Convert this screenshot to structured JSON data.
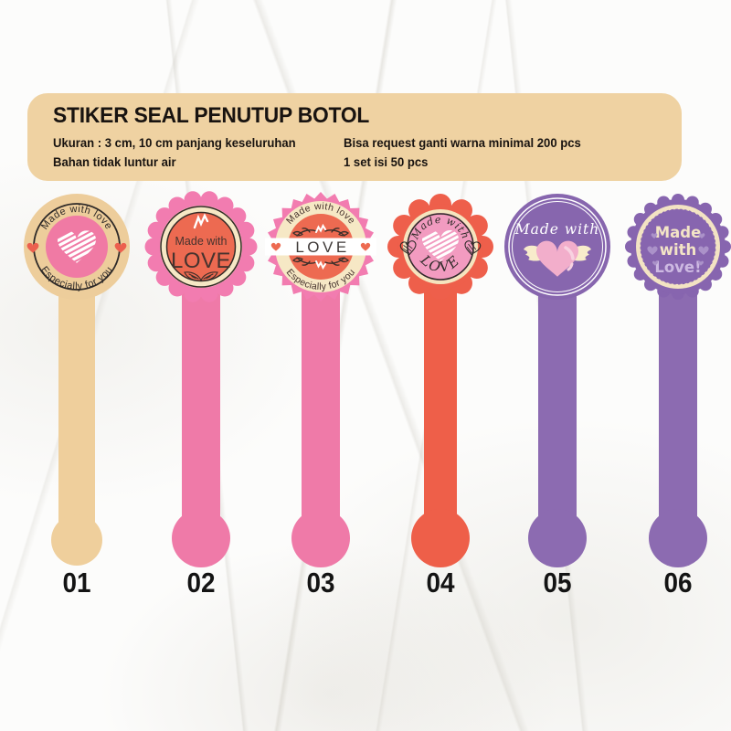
{
  "header": {
    "title": "STIKER SEAL PENUTUP BOTOL",
    "left_lines": [
      "Ukuran : 3 cm, 10 cm panjang keseluruhan",
      "Bahan tidak luntur air"
    ],
    "right_lines": [
      "Bisa request ganti warna minimal 200 pcs",
      "1 set isi 50 pcs"
    ],
    "bg": "#EFD2A2",
    "text_color": "#181310"
  },
  "stickers": [
    {
      "number": "01",
      "texts": {
        "top": "Made with love",
        "bottom": "Especially for you"
      },
      "motif": "white scribble heart in pink circle with small side hearts",
      "colors": {
        "base": "#EDCD9B",
        "center": "#F07AA4",
        "hearts": "#EC5F4E",
        "ink": "#2E2A28",
        "strip": "#EFCF9C"
      }
    },
    {
      "number": "02",
      "texts": {
        "line1": "Made with",
        "line2": "LOVE"
      },
      "motif": "scalloped badge with white scribble and leaf doodles",
      "colors": {
        "scallop": "#F27CB0",
        "ring": "#F6E8C5",
        "center": "#ED6A51",
        "ink": "#46332E",
        "strip": "#EF7AA8"
      }
    },
    {
      "number": "03",
      "texts": {
        "top": "Made with love",
        "banner": "LOVE",
        "bottom": "Especially for you"
      },
      "motif": "zigzag badge with white banner, laurel doodles and hearts",
      "colors": {
        "edge": "#F27CB0",
        "ring": "#F6E8C5",
        "center": "#ED6A51",
        "banner": "#FFFFFF",
        "ink": "#46332E",
        "hearts": "#ED6A51",
        "strip": "#EF7AA8"
      }
    },
    {
      "number": "04",
      "texts": {
        "top": "Made with",
        "bottom": "LOVE"
      },
      "motif": "flower badge with white scribble heart and striped heart doodles",
      "colors": {
        "petals": "#EE5F4B",
        "ring": "#F5E4BE",
        "center": "#F29BC0",
        "ink": "#2E2A28",
        "strip": "#EE5F49"
      }
    },
    {
      "number": "05",
      "texts": {
        "top": "Made with"
      },
      "motif": "pink winged heart in double white ring",
      "colors": {
        "base": "#8766AE",
        "heart": "#F2AECB",
        "heart_highlight": "#F8D2E1",
        "wings": "#F8ECCB",
        "ring": "#FFFFFF",
        "strip": "#8C6BB1"
      }
    },
    {
      "number": "06",
      "texts": {
        "line1": "Made",
        "line2": "with",
        "line3": "Love!"
      },
      "motif": "scalloped badge with lavender hearts",
      "colors": {
        "scallop": "#8765AF",
        "ring": "#F3E3C3",
        "center": "#8765AF",
        "text": "#F3E4C6",
        "accent": "#CDB9E2",
        "hearts": "#AB92C9",
        "strip": "#8C6BB1"
      }
    }
  ]
}
